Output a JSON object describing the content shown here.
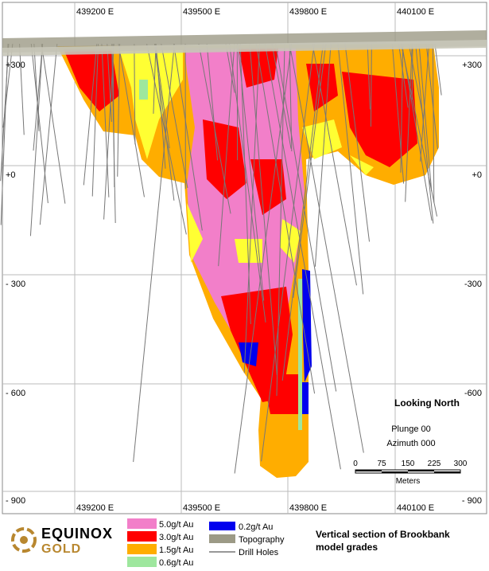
{
  "grid": {
    "eastings_top": [
      "439200 E",
      "439500 E",
      "439800 E",
      "440100 E"
    ],
    "eastings_bottom": [
      "439200 E",
      "439500 E",
      "439800 E",
      "440100 E"
    ],
    "elevations_left": [
      "+300",
      "+0",
      "- 300",
      "- 600",
      "- 900"
    ],
    "elevations_right": [
      "+300",
      "+0",
      "-300",
      "-600",
      "- 900"
    ]
  },
  "annotations": {
    "view": "Looking North",
    "plunge": "Plunge 00",
    "azimuth": "Azimuth 000"
  },
  "scale_bar": {
    "ticks": [
      "0",
      "75",
      "150",
      "225",
      "300"
    ],
    "unit": "Meters"
  },
  "logo": {
    "line1": "EQUINOX",
    "line2": "GOLD"
  },
  "legend": {
    "grades": [
      {
        "label": "5.0g/t Au",
        "color": "#f27fc9"
      },
      {
        "label": "3.0g/t Au",
        "color": "#ff0000"
      },
      {
        "label": "1.5g/t Au",
        "color": "#ffad00"
      },
      {
        "label": "0.6g/t Au",
        "color": "#9ee79e"
      }
    ],
    "others": [
      {
        "label": "0.2g/t Au",
        "color": "#0000ee"
      },
      {
        "label": "Topography",
        "color": "#9c9a86"
      },
      {
        "label": "Drill Holes",
        "color": "#777777"
      }
    ]
  },
  "caption": [
    "Vertical section of Brookbank",
    "model grades"
  ]
}
